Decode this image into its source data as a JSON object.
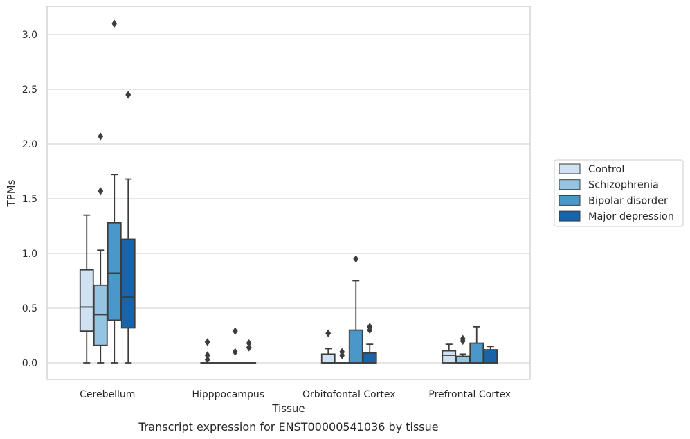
{
  "caption": "Transcript expression for ENST00000541036 by tissue",
  "chart_data": {
    "type": "box",
    "xlabel": "Tissue",
    "ylabel": "TPMs",
    "ylim": [
      -0.15,
      3.25
    ],
    "yticks": [
      "0.0",
      "0.5",
      "1.0",
      "1.5",
      "2.0",
      "2.5",
      "3.0"
    ],
    "grid": "horizontal",
    "legend_position": "right",
    "categories": [
      "Cerebellum",
      "Hipppocampus",
      "Orbitofontal Cortex",
      "Prefrontal Cortex"
    ],
    "series": [
      {
        "name": "Control",
        "color": "#d0e1f2",
        "boxes": [
          {
            "q1": 0.29,
            "median": 0.51,
            "q3": 0.85,
            "whisker_low": 0.0,
            "whisker_high": 1.35,
            "outliers": []
          },
          {
            "q1": 0.0,
            "median": 0.0,
            "q3": 0.0,
            "whisker_low": 0.0,
            "whisker_high": 0.0,
            "outliers": [
              0.19,
              0.07,
              0.03
            ]
          },
          {
            "q1": 0.0,
            "median": 0.0,
            "q3": 0.08,
            "whisker_low": 0.0,
            "whisker_high": 0.13,
            "outliers": [
              0.27
            ]
          },
          {
            "q1": 0.0,
            "median": 0.07,
            "q3": 0.11,
            "whisker_low": 0.0,
            "whisker_high": 0.17,
            "outliers": []
          }
        ]
      },
      {
        "name": "Schizophrenia",
        "color": "#94c4df",
        "boxes": [
          {
            "q1": 0.16,
            "median": 0.44,
            "q3": 0.71,
            "whisker_low": 0.0,
            "whisker_high": 1.03,
            "outliers": [
              2.07,
              1.57
            ]
          },
          {
            "q1": 0.0,
            "median": 0.0,
            "q3": 0.0,
            "whisker_low": 0.0,
            "whisker_high": 0.0,
            "outliers": []
          },
          {
            "q1": 0.0,
            "median": 0.0,
            "q3": 0.0,
            "whisker_low": 0.0,
            "whisker_high": 0.0,
            "outliers": [
              0.1,
              0.07
            ]
          },
          {
            "q1": 0.0,
            "median": 0.0,
            "q3": 0.06,
            "whisker_low": 0.0,
            "whisker_high": 0.08,
            "outliers": [
              0.22,
              0.2
            ]
          }
        ]
      },
      {
        "name": "Bipolar disorder",
        "color": "#4a98c9",
        "boxes": [
          {
            "q1": 0.39,
            "median": 0.82,
            "q3": 1.28,
            "whisker_low": 0.0,
            "whisker_high": 1.72,
            "outliers": [
              3.1
            ]
          },
          {
            "q1": 0.0,
            "median": 0.0,
            "q3": 0.0,
            "whisker_low": 0.0,
            "whisker_high": 0.0,
            "outliers": [
              0.29,
              0.1
            ]
          },
          {
            "q1": 0.0,
            "median": 0.0,
            "q3": 0.3,
            "whisker_low": 0.0,
            "whisker_high": 0.75,
            "outliers": [
              0.95
            ]
          },
          {
            "q1": 0.0,
            "median": 0.0,
            "q3": 0.18,
            "whisker_low": 0.0,
            "whisker_high": 0.33,
            "outliers": []
          }
        ]
      },
      {
        "name": "Major depression",
        "color": "#1764ab",
        "boxes": [
          {
            "q1": 0.32,
            "median": 0.6,
            "q3": 1.13,
            "whisker_low": 0.0,
            "whisker_high": 1.68,
            "outliers": [
              2.45
            ]
          },
          {
            "q1": 0.0,
            "median": 0.0,
            "q3": 0.0,
            "whisker_low": 0.0,
            "whisker_high": 0.0,
            "outliers": [
              0.18,
              0.14
            ]
          },
          {
            "q1": 0.0,
            "median": 0.0,
            "q3": 0.09,
            "whisker_low": 0.0,
            "whisker_high": 0.17,
            "outliers": [
              0.33,
              0.3
            ]
          },
          {
            "q1": 0.0,
            "median": 0.0,
            "q3": 0.12,
            "whisker_low": 0.0,
            "whisker_high": 0.15,
            "outliers": []
          }
        ]
      }
    ]
  }
}
